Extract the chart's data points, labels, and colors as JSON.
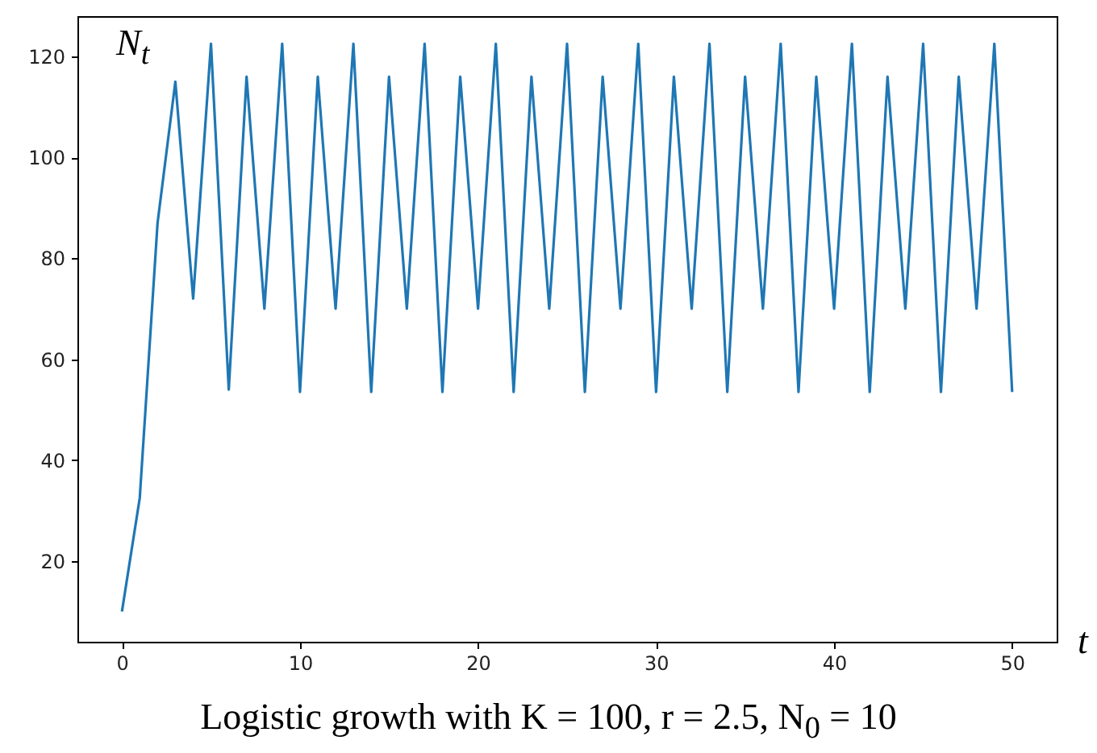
{
  "chart_data": {
    "type": "line",
    "title": "Logistic growth with K = 100, r = 2.5, N$_{0}$ = 10",
    "xlabel": "t",
    "ylabel": "N$_{t}$",
    "x": [
      0,
      1,
      2,
      3,
      4,
      5,
      6,
      7,
      8,
      9,
      10,
      11,
      12,
      13,
      14,
      15,
      16,
      17,
      18,
      19,
      20,
      21,
      22,
      23,
      24,
      25,
      26,
      27,
      28,
      29,
      30,
      31,
      32,
      33,
      34,
      35,
      36,
      37,
      38,
      39,
      40,
      41,
      42,
      43,
      44,
      45,
      46,
      47,
      48,
      49,
      50
    ],
    "series": [
      {
        "color": "#1f77b4",
        "values": [
          10,
          32.5,
          87,
          115,
          72,
          122.5,
          54,
          116,
          70,
          122.5,
          53.5,
          116,
          70,
          122.5,
          53.5,
          116,
          70,
          122.5,
          53.5,
          116,
          70,
          122.5,
          53.5,
          116,
          70,
          122.5,
          53.5,
          116,
          70,
          122.5,
          53.5,
          116,
          70,
          122.5,
          53.5,
          116,
          70,
          122.5,
          53.5,
          116,
          70,
          122.5,
          53.5,
          116,
          70,
          122.5,
          53.5,
          116,
          70,
          122.5,
          53.5
        ]
      }
    ],
    "xlim": [
      -2.5,
      52.5
    ],
    "ylim": [
      4,
      128
    ],
    "xticks": [
      0,
      10,
      20,
      30,
      40,
      50
    ],
    "yticks": [
      20,
      40,
      60,
      80,
      100,
      120
    ],
    "grid": false,
    "marker": "none",
    "line_style": "solid"
  }
}
